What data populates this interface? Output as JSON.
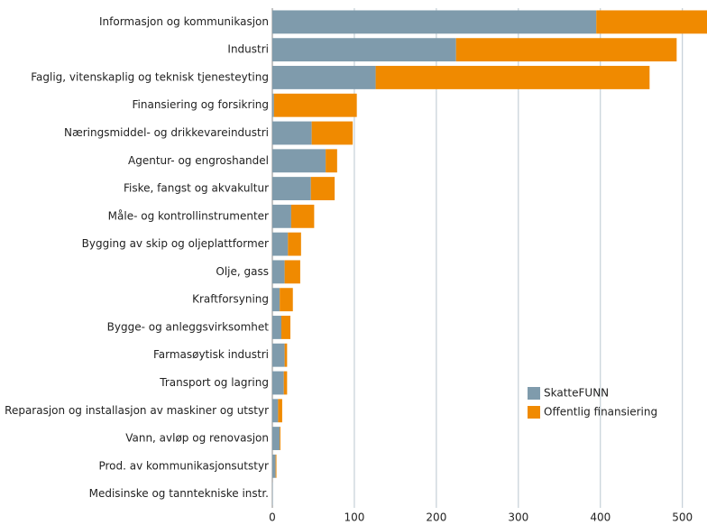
{
  "chart_data": {
    "type": "stacked_barh",
    "categories": [
      "Informasjon og kommunikasjon",
      "Industri",
      "Faglig, vitenskaplig og teknisk tjenesteyting",
      "Finansiering og forsikring",
      "Næringsmiddel- og drikkevareindustri",
      "Agentur- og  engroshandel",
      "Fiske, fangst og akvakultur",
      "Måle- og kontrollinstrumenter",
      "Bygging av skip og oljeplattformer",
      "Olje, gass",
      "Kraftforsyning",
      "Bygge- og anleggsvirksomhet",
      "Farmasøytisk industri",
      "Transport og lagring",
      "Reparasjon og installasjon av maskiner og utstyr",
      "Vann, avløp og renovasjon",
      "Prod. av kommunikasjonsutstyr",
      "Medisinske og tanntekniske instr."
    ],
    "series": [
      {
        "name": "SkatteFUNN",
        "color": "#7f9bac",
        "values": [
          395,
          224,
          126,
          2,
          48,
          65,
          47,
          23,
          19,
          15,
          9,
          11,
          15,
          14,
          7,
          9,
          4,
          0.5
        ]
      },
      {
        "name": "Offentlig finansiering",
        "color": "#f08a00",
        "values": [
          165,
          269,
          334,
          101,
          50,
          14,
          29,
          28,
          16,
          19,
          16,
          11,
          3,
          4,
          5,
          1,
          1,
          0
        ]
      }
    ],
    "xlim": [
      0,
      530
    ],
    "xticks": [
      0,
      100,
      200,
      300,
      400,
      500
    ],
    "grid": true,
    "legend": "lower right"
  }
}
